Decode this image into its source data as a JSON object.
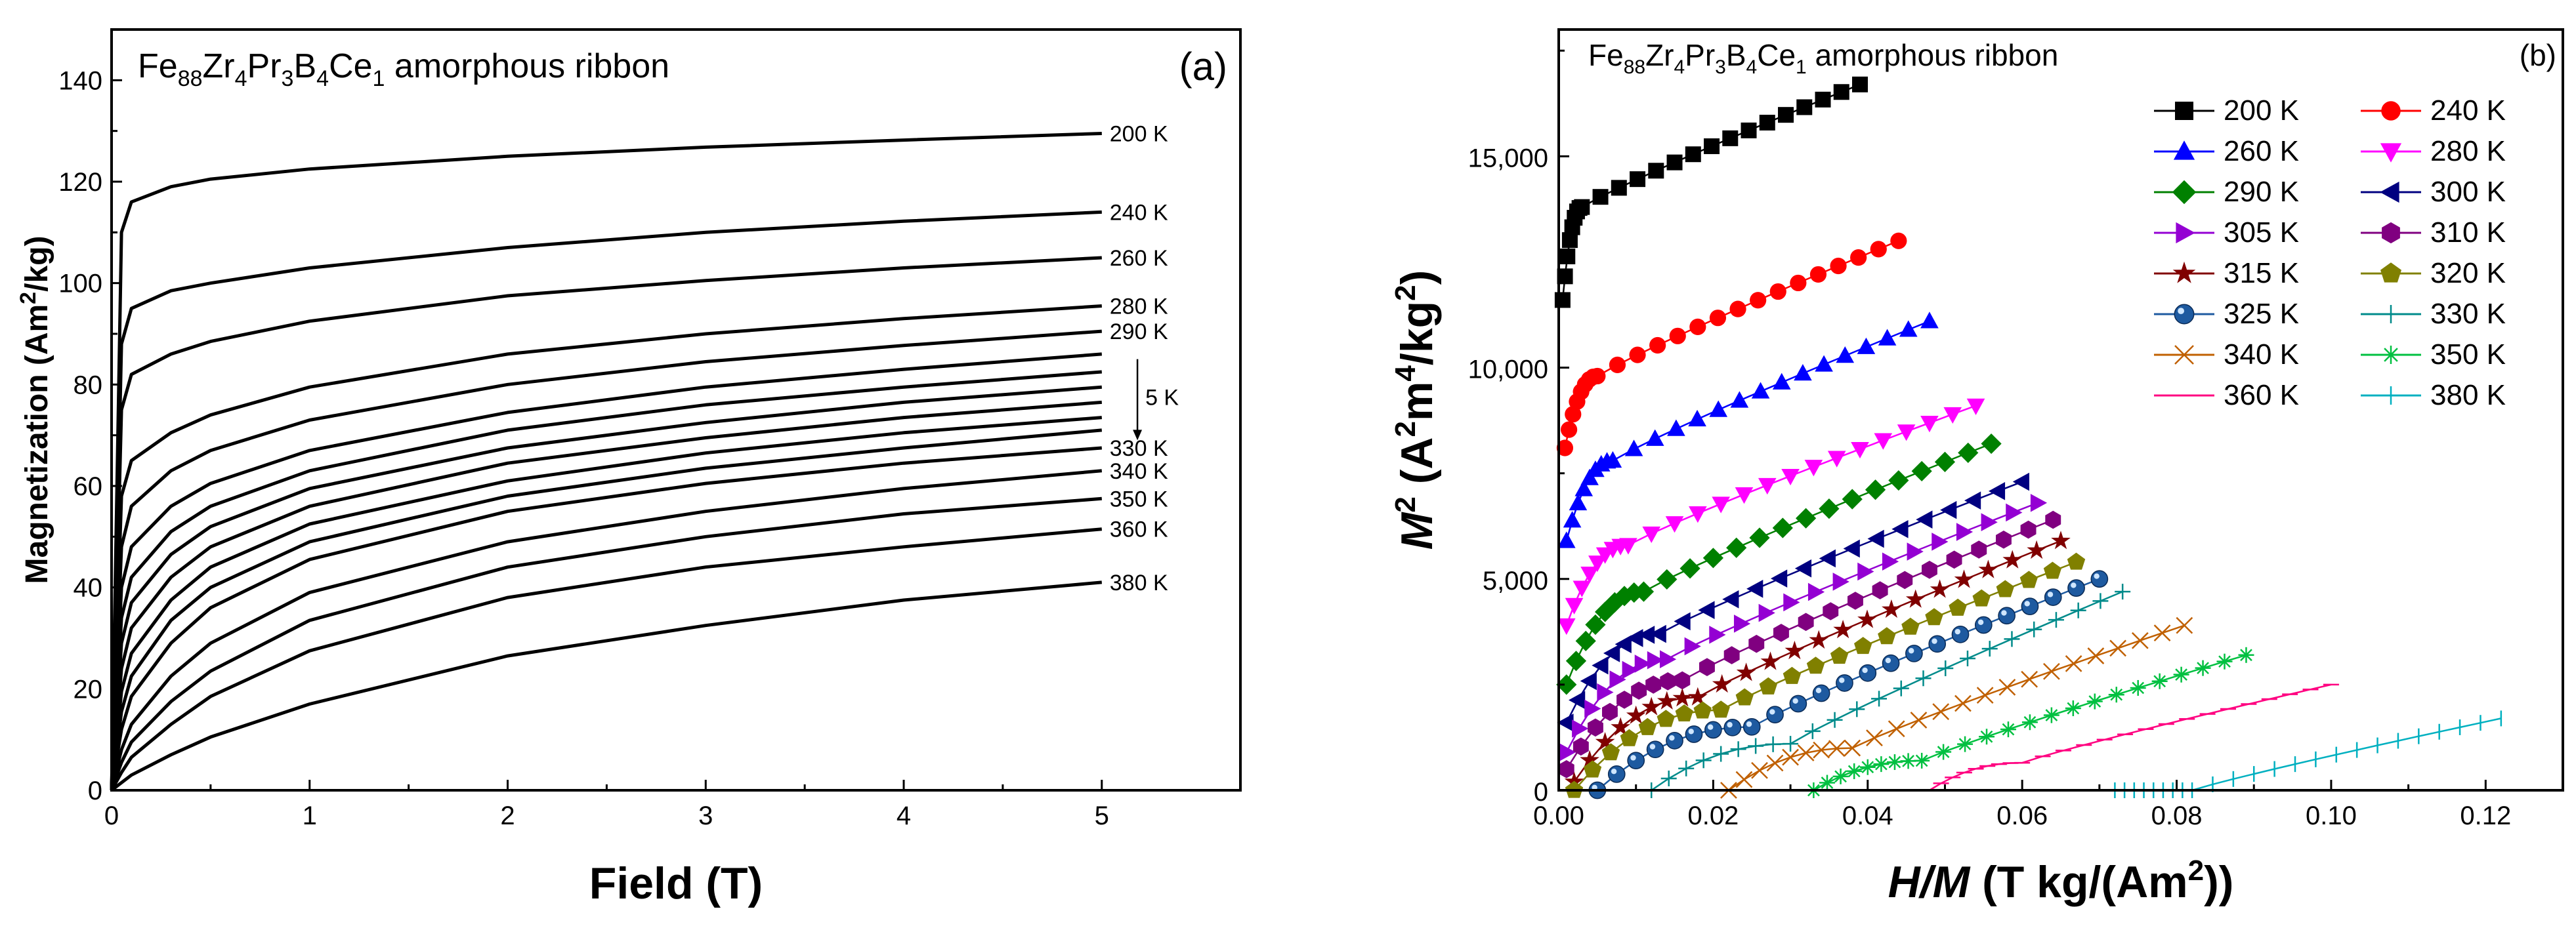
{
  "chart_data": [
    {
      "type": "line",
      "panel_label": "(a)",
      "title": "Fe88Zr4Pr3B4Ce1 amorphous ribbon",
      "title_parts": {
        "base": "Fe",
        "sub1": "88",
        "el2": "Zr",
        "sub2": "4",
        "el3": "Pr",
        "sub3": "3",
        "el4": "B",
        "sub4": "4",
        "el5": "Ce",
        "sub5": "1",
        "rest": " amorphous ribbon"
      },
      "xlabel": "Field (T)",
      "ylabel_parts": {
        "pre": "Magnetization (Am",
        "sup": "2",
        "post": "/kg)"
      },
      "xlim": [
        0,
        5.7
      ],
      "ylim": [
        0,
        150
      ],
      "xticks": [
        "0",
        "1",
        "2",
        "3",
        "4",
        "5"
      ],
      "yticks": [
        "0",
        "20",
        "40",
        "60",
        "80",
        "100",
        "120",
        "140"
      ],
      "series": [
        {
          "name": "200 K",
          "temp": 200,
          "values": [
            [
              0,
              0
            ],
            [
              0.05,
              110
            ],
            [
              0.1,
              116
            ],
            [
              0.3,
              119
            ],
            [
              0.5,
              120.5
            ],
            [
              1,
              122.5
            ],
            [
              2,
              125
            ],
            [
              3,
              126.8
            ],
            [
              4,
              128.2
            ],
            [
              5,
              129.5
            ]
          ]
        },
        {
          "name": "240 K",
          "temp": 240,
          "values": [
            [
              0,
              0
            ],
            [
              0.05,
              88
            ],
            [
              0.1,
              95
            ],
            [
              0.3,
              98.5
            ],
            [
              0.5,
              100
            ],
            [
              1,
              103
            ],
            [
              2,
              107
            ],
            [
              3,
              110
            ],
            [
              4,
              112.2
            ],
            [
              5,
              114
            ]
          ]
        },
        {
          "name": "260 K",
          "temp": 260,
          "values": [
            [
              0,
              0
            ],
            [
              0.05,
              75
            ],
            [
              0.1,
              82
            ],
            [
              0.3,
              86
            ],
            [
              0.5,
              88.5
            ],
            [
              1,
              92.5
            ],
            [
              2,
              97.5
            ],
            [
              3,
              100.5
            ],
            [
              4,
              103
            ],
            [
              5,
              105
            ]
          ]
        },
        {
          "name": "280 K",
          "temp": 280,
          "values": [
            [
              0,
              0
            ],
            [
              0.05,
              58
            ],
            [
              0.1,
              65
            ],
            [
              0.3,
              70.5
            ],
            [
              0.5,
              74
            ],
            [
              1,
              79.5
            ],
            [
              2,
              86
            ],
            [
              3,
              90
            ],
            [
              4,
              93
            ],
            [
              5,
              95.5
            ]
          ]
        },
        {
          "name": "290 K",
          "temp": 290,
          "values": [
            [
              0,
              0
            ],
            [
              0.05,
              48
            ],
            [
              0.1,
              56
            ],
            [
              0.3,
              63
            ],
            [
              0.5,
              67
            ],
            [
              1,
              73
            ],
            [
              2,
              80
            ],
            [
              3,
              84.5
            ],
            [
              4,
              87.7
            ],
            [
              5,
              90.5
            ]
          ]
        },
        {
          "name": "",
          "temp": 300,
          "values": [
            [
              0,
              0
            ],
            [
              0.05,
              40
            ],
            [
              0.1,
              48
            ],
            [
              0.3,
              56
            ],
            [
              0.5,
              60.5
            ],
            [
              1,
              67
            ],
            [
              2,
              74.5
            ],
            [
              3,
              79.5
            ],
            [
              4,
              83
            ],
            [
              5,
              86
            ]
          ]
        },
        {
          "name": "",
          "temp": 305,
          "values": [
            [
              0,
              0
            ],
            [
              0.05,
              34
            ],
            [
              0.1,
              42
            ],
            [
              0.3,
              51
            ],
            [
              0.5,
              56
            ],
            [
              1,
              63
            ],
            [
              2,
              71
            ],
            [
              3,
              76
            ],
            [
              4,
              79.5
            ],
            [
              5,
              82.5
            ]
          ]
        },
        {
          "name": "",
          "temp": 310,
          "values": [
            [
              0,
              0
            ],
            [
              0.05,
              29
            ],
            [
              0.1,
              37
            ],
            [
              0.3,
              46.5
            ],
            [
              0.5,
              52
            ],
            [
              1,
              59.5
            ],
            [
              2,
              67.5
            ],
            [
              3,
              72.5
            ],
            [
              4,
              76.5
            ],
            [
              5,
              79.5
            ]
          ]
        },
        {
          "name": "",
          "temp": 315,
          "values": [
            [
              0,
              0
            ],
            [
              0.05,
              24
            ],
            [
              0.1,
              32
            ],
            [
              0.3,
              42
            ],
            [
              0.5,
              48
            ],
            [
              1,
              56
            ],
            [
              2,
              64.5
            ],
            [
              3,
              69.5
            ],
            [
              4,
              73.5
            ],
            [
              5,
              76.5
            ]
          ]
        },
        {
          "name": "",
          "temp": 320,
          "values": [
            [
              0,
              0
            ],
            [
              0.05,
              19.5
            ],
            [
              0.1,
              27
            ],
            [
              0.3,
              37.5
            ],
            [
              0.5,
              44
            ],
            [
              1,
              52.5
            ],
            [
              2,
              61
            ],
            [
              3,
              66.5
            ],
            [
              4,
              70.5
            ],
            [
              5,
              73.5
            ]
          ]
        },
        {
          "name": "",
          "temp": 325,
          "values": [
            [
              0,
              0
            ],
            [
              0.05,
              15.5
            ],
            [
              0.1,
              22.5
            ],
            [
              0.3,
              33.5
            ],
            [
              0.5,
              40
            ],
            [
              1,
              49
            ],
            [
              2,
              58
            ],
            [
              3,
              63.5
            ],
            [
              4,
              67.5
            ],
            [
              5,
              71
            ]
          ]
        },
        {
          "name": "330 K",
          "temp": 330,
          "values": [
            [
              0,
              0
            ],
            [
              0.05,
              12
            ],
            [
              0.1,
              18.5
            ],
            [
              0.3,
              29
            ],
            [
              0.5,
              36
            ],
            [
              1,
              45.5
            ],
            [
              2,
              55
            ],
            [
              3,
              60.5
            ],
            [
              4,
              64.5
            ],
            [
              5,
              67.5
            ]
          ]
        },
        {
          "name": "340 K",
          "temp": 340,
          "values": [
            [
              0,
              0
            ],
            [
              0.05,
              8
            ],
            [
              0.1,
              13
            ],
            [
              0.3,
              22.5
            ],
            [
              0.5,
              29
            ],
            [
              1,
              39
            ],
            [
              2,
              49
            ],
            [
              3,
              55
            ],
            [
              4,
              59.5
            ],
            [
              5,
              63
            ]
          ]
        },
        {
          "name": "350 K",
          "temp": 350,
          "values": [
            [
              0,
              0
            ],
            [
              0.05,
              5.5
            ],
            [
              0.1,
              9.5
            ],
            [
              0.3,
              17.5
            ],
            [
              0.5,
              23.5
            ],
            [
              1,
              33.5
            ],
            [
              2,
              44
            ],
            [
              3,
              50
            ],
            [
              4,
              54.5
            ],
            [
              5,
              57.5
            ]
          ]
        },
        {
          "name": "360 K",
          "temp": 360,
          "values": [
            [
              0,
              0
            ],
            [
              0.05,
              3.5
            ],
            [
              0.1,
              6.5
            ],
            [
              0.3,
              13
            ],
            [
              0.5,
              18.5
            ],
            [
              1,
              27.5
            ],
            [
              2,
              38
            ],
            [
              3,
              44
            ],
            [
              4,
              48
            ],
            [
              5,
              51.5
            ]
          ]
        },
        {
          "name": "380 K",
          "temp": 380,
          "values": [
            [
              0,
              0
            ],
            [
              0.05,
              1.5
            ],
            [
              0.1,
              3
            ],
            [
              0.3,
              7
            ],
            [
              0.5,
              10.5
            ],
            [
              1,
              17
            ],
            [
              2,
              26.5
            ],
            [
              3,
              32.5
            ],
            [
              4,
              37.5
            ],
            [
              5,
              41
            ]
          ]
        }
      ],
      "annotations": [
        {
          "text": "5 K",
          "x": 5.08,
          "y": 77.5
        }
      ]
    },
    {
      "type": "scatter",
      "panel_label": "(b)",
      "title": "Fe88Zr4Pr3B4Ce1 amorphous ribbon",
      "xlabel_parts": {
        "pre": "H/M",
        "post": " (T kg/(Am",
        "sup": "2",
        "end": "))"
      },
      "ylabel_parts": {
        "m": "M",
        "sup1": "2",
        "a": " (A",
        "sup2": "2",
        "mid": "m",
        "sup3": "4",
        "kg": "/kg",
        "sup4": "2",
        "end": ")"
      },
      "xlim": [
        0,
        0.13
      ],
      "ylim": [
        0,
        18000
      ],
      "xticks": [
        "0.00",
        "0.02",
        "0.04",
        "0.06",
        "0.08",
        "0.10",
        "0.12"
      ],
      "yticks": [
        "0",
        "5,000",
        "10,000",
        "15,000"
      ],
      "legend_position": "top-right",
      "series": [
        {
          "name": "200 K",
          "color": "#000000",
          "marker": "square",
          "lo": [
            0.0005,
            11600
          ],
          "knee": [
            0.003,
            13800
          ],
          "hi": [
            0.039,
            16700
          ]
        },
        {
          "name": "240 K",
          "color": "#ff0000",
          "marker": "circle",
          "lo": [
            0.0008,
            8100
          ],
          "knee": [
            0.005,
            9800
          ],
          "hi": [
            0.044,
            13000
          ]
        },
        {
          "name": "260 K",
          "color": "#0000ff",
          "marker": "triangle-up",
          "lo": [
            0.001,
            5900
          ],
          "knee": [
            0.007,
            7800
          ],
          "hi": [
            0.048,
            11100
          ]
        },
        {
          "name": "280 K",
          "color": "#ff00ff",
          "marker": "triangle-down",
          "lo": [
            0.001,
            3900
          ],
          "knee": [
            0.009,
            5800
          ],
          "hi": [
            0.054,
            9100
          ]
        },
        {
          "name": "290 K",
          "color": "#008000",
          "marker": "diamond",
          "lo": [
            0.001,
            2500
          ],
          "knee": [
            0.011,
            4700
          ],
          "hi": [
            0.056,
            8200
          ]
        },
        {
          "name": "300 K",
          "color": "#000080",
          "marker": "triangle-left",
          "lo": [
            0.001,
            1600
          ],
          "knee": [
            0.013,
            3700
          ],
          "hi": [
            0.06,
            7300
          ]
        },
        {
          "name": "305 K",
          "color": "#9400d3",
          "marker": "triangle-right",
          "lo": [
            0.001,
            900
          ],
          "knee": [
            0.014,
            3100
          ],
          "hi": [
            0.062,
            6800
          ]
        },
        {
          "name": "310 K",
          "color": "#800080",
          "marker": "hexagon",
          "lo": [
            0.001,
            500
          ],
          "knee": [
            0.016,
            2600
          ],
          "hi": [
            0.064,
            6400
          ]
        },
        {
          "name": "315 K",
          "color": "#800000",
          "marker": "star",
          "lo": [
            0.002,
            200
          ],
          "knee": [
            0.018,
            2200
          ],
          "hi": [
            0.065,
            5900
          ]
        },
        {
          "name": "320 K",
          "color": "#808000",
          "marker": "pentagon",
          "lo": [
            0.002,
            0
          ],
          "knee": [
            0.021,
            1900
          ],
          "hi": [
            0.067,
            5400
          ]
        },
        {
          "name": "325 K",
          "color": "#1e5aa0",
          "marker": "sphere",
          "lo": [
            0.005,
            0
          ],
          "knee": [
            0.025,
            1500
          ],
          "hi": [
            0.07,
            5000
          ]
        },
        {
          "name": "330 K",
          "color": "#008b8b",
          "marker": "plus",
          "lo": [
            0.012,
            0
          ],
          "knee": [
            0.03,
            1100
          ],
          "hi": [
            0.073,
            4700
          ]
        },
        {
          "name": "340 K",
          "color": "#c06000",
          "marker": "x",
          "lo": [
            0.022,
            0
          ],
          "knee": [
            0.038,
            1000
          ],
          "hi": [
            0.081,
            3900
          ]
        },
        {
          "name": "350 K",
          "color": "#00c040",
          "marker": "asterisk",
          "lo": [
            0.033,
            0
          ],
          "knee": [
            0.047,
            700
          ],
          "hi": [
            0.089,
            3200
          ]
        },
        {
          "name": "360 K",
          "color": "#ff0080",
          "marker": "dash",
          "lo": [
            0.048,
            0
          ],
          "knee": [
            0.06,
            650
          ],
          "hi": [
            0.1,
            2500
          ]
        },
        {
          "name": "380 K",
          "color": "#00b0c0",
          "marker": "vline",
          "lo": [
            0.072,
            0
          ],
          "knee": [
            0.082,
            0
          ],
          "hi": [
            0.122,
            1700
          ]
        }
      ]
    }
  ]
}
